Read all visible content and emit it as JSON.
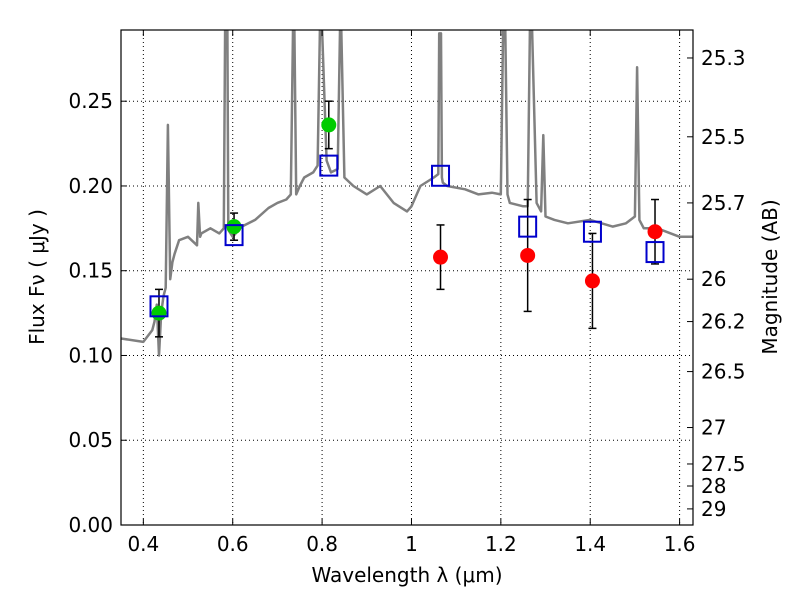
{
  "chart_data": {
    "type": "scatter",
    "title": "",
    "xlabel": "Wavelength  λ (μm)",
    "ylabel": "Flux  Fν  ( μJy )",
    "ylabel_right": "Magnitude (AB)",
    "xlim": [
      0.35,
      1.63
    ],
    "ylim": [
      0.0,
      0.292
    ],
    "grid": true,
    "legend": "none",
    "x_ticks": [
      0.4,
      0.6,
      0.8,
      1.0,
      1.2,
      1.4,
      1.6
    ],
    "x_tick_labels": [
      "0.4",
      "0.6",
      "0.8",
      "1",
      "1.2",
      "1.4",
      "1.6"
    ],
    "y_ticks": [
      0.0,
      0.05,
      0.1,
      0.15,
      0.2,
      0.25
    ],
    "y_tick_labels": [
      "0.00",
      "0.05",
      "0.10",
      "0.15",
      "0.20",
      "0.25"
    ],
    "right_ticks": [
      {
        "flux": 0.2755,
        "label": "25.3"
      },
      {
        "flux": 0.229,
        "label": "25.5"
      },
      {
        "flux": 0.19,
        "label": "25.7"
      },
      {
        "flux": 0.145,
        "label": "26"
      },
      {
        "flux": 0.12,
        "label": "26.2"
      },
      {
        "flux": 0.0905,
        "label": "26.5"
      },
      {
        "flux": 0.0575,
        "label": "27"
      },
      {
        "flux": 0.036,
        "label": "27.5"
      },
      {
        "flux": 0.023,
        "label": "28"
      },
      {
        "flux": 0.0095,
        "label": "29"
      }
    ],
    "series": [
      {
        "kind": "line",
        "color": "#808080",
        "x": [
          0.35,
          0.4,
          0.42,
          0.425,
          0.43,
          0.435,
          0.44,
          0.445,
          0.45,
          0.455,
          0.46,
          0.465,
          0.47,
          0.48,
          0.5,
          0.52,
          0.523,
          0.527,
          0.53,
          0.55,
          0.57,
          0.58,
          0.583,
          0.585,
          0.588,
          0.59,
          0.6,
          0.62,
          0.65,
          0.68,
          0.7,
          0.72,
          0.73,
          0.735,
          0.738,
          0.742,
          0.75,
          0.76,
          0.78,
          0.79,
          0.795,
          0.8,
          0.81,
          0.82,
          0.835,
          0.84,
          0.843,
          0.85,
          0.87,
          0.9,
          0.93,
          0.96,
          0.99,
          1.0,
          1.02,
          1.05,
          1.06,
          1.062,
          1.066,
          1.068,
          1.07,
          1.08,
          1.12,
          1.15,
          1.18,
          1.2,
          1.205,
          1.21,
          1.215,
          1.22,
          1.25,
          1.26,
          1.265,
          1.27,
          1.28,
          1.29,
          1.295,
          1.3,
          1.32,
          1.35,
          1.4,
          1.45,
          1.48,
          1.5,
          1.505,
          1.51,
          1.52,
          1.55,
          1.6,
          1.63
        ],
        "y": [
          0.11,
          0.108,
          0.115,
          0.12,
          0.13,
          0.1,
          0.125,
          0.135,
          0.14,
          0.236,
          0.145,
          0.155,
          0.16,
          0.168,
          0.17,
          0.165,
          0.19,
          0.17,
          0.172,
          0.175,
          0.172,
          0.175,
          0.292,
          0.292,
          0.292,
          0.174,
          0.17,
          0.176,
          0.18,
          0.187,
          0.19,
          0.192,
          0.195,
          0.292,
          0.292,
          0.195,
          0.2,
          0.205,
          0.208,
          0.212,
          0.292,
          0.292,
          0.215,
          0.208,
          0.21,
          0.292,
          0.292,
          0.205,
          0.2,
          0.195,
          0.2,
          0.19,
          0.185,
          0.188,
          0.2,
          0.205,
          0.207,
          0.29,
          0.29,
          0.205,
          0.202,
          0.2,
          0.198,
          0.195,
          0.196,
          0.195,
          0.292,
          0.292,
          0.195,
          0.19,
          0.188,
          0.188,
          0.292,
          0.292,
          0.19,
          0.185,
          0.23,
          0.182,
          0.18,
          0.178,
          0.18,
          0.176,
          0.178,
          0.182,
          0.27,
          0.18,
          0.175,
          0.175,
          0.17,
          0.17
        ]
      },
      {
        "kind": "markers",
        "marker": "circle",
        "color": "#00cc00",
        "x": [
          0.435,
          0.603,
          0.815
        ],
        "y": [
          0.125,
          0.176,
          0.236
        ],
        "err": [
          0.014,
          0.008,
          0.014
        ]
      },
      {
        "kind": "markers",
        "marker": "circle",
        "color": "#ff0000",
        "x": [
          1.065,
          1.26,
          1.405,
          1.545
        ],
        "y": [
          0.158,
          0.159,
          0.144,
          0.173
        ],
        "err": [
          0.019,
          0.033,
          0.028,
          0.019
        ]
      },
      {
        "kind": "markers",
        "marker": "open-square",
        "color": "#0000cc",
        "x": [
          0.435,
          0.603,
          0.815,
          1.065,
          1.26,
          1.405,
          1.545
        ],
        "y": [
          0.129,
          0.171,
          0.212,
          0.206,
          0.176,
          0.173,
          0.161
        ]
      }
    ]
  }
}
